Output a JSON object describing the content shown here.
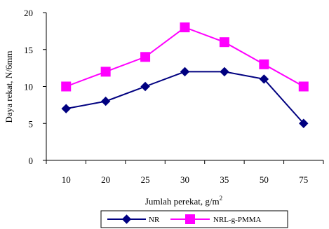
{
  "chart_data": {
    "type": "line",
    "categories": [
      "10",
      "20",
      "25",
      "30",
      "35",
      "50",
      "75"
    ],
    "series": [
      {
        "name": "NR",
        "values": [
          7,
          8,
          10,
          12,
          12,
          11,
          5
        ],
        "color": "#000080",
        "marker": "diamond"
      },
      {
        "name": "NRL-g-PMMA",
        "values": [
          10,
          12,
          14,
          18,
          16,
          13,
          10
        ],
        "color": "#ff00ff",
        "marker": "square"
      }
    ],
    "xlabel": "Jumlah perekat, g/m",
    "xlabel_superscript": "2",
    "ylabel": "Daya rekat, N/6mm",
    "ylim": [
      0,
      20
    ],
    "yticks": [
      0,
      5,
      10,
      15,
      20
    ],
    "grid": false,
    "legend_position": "bottom"
  }
}
